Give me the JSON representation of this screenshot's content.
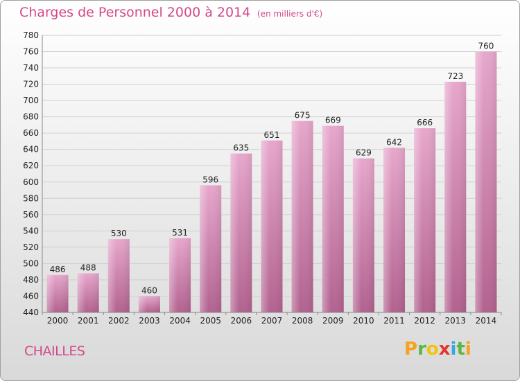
{
  "header": {
    "title": "Charges de Personnel 2000 à 2014",
    "subtitle": "(en milliers d'€)"
  },
  "commune": "CHAILLES",
  "logo": {
    "letters": [
      "P",
      "r",
      "o",
      "x",
      "i",
      "t",
      "i"
    ],
    "colors": [
      "#f7a21b",
      "#5bb744",
      "#f1c40f",
      "#e4372c",
      "#37a7dd",
      "#5bb744",
      "#f7a21b"
    ]
  },
  "chart_data": {
    "type": "bar",
    "categories": [
      "2000",
      "2001",
      "2002",
      "2003",
      "2004",
      "2005",
      "2006",
      "2007",
      "2008",
      "2009",
      "2010",
      "2011",
      "2012",
      "2013",
      "2014"
    ],
    "values": [
      486,
      488,
      530,
      460,
      531,
      596,
      635,
      651,
      675,
      669,
      629,
      642,
      666,
      723,
      760
    ],
    "ylim": [
      440,
      780
    ],
    "yticks": [
      440,
      460,
      480,
      500,
      520,
      540,
      560,
      580,
      600,
      620,
      640,
      660,
      680,
      700,
      720,
      740,
      760,
      780
    ],
    "grid": true,
    "bar_color": "#d67fae"
  }
}
